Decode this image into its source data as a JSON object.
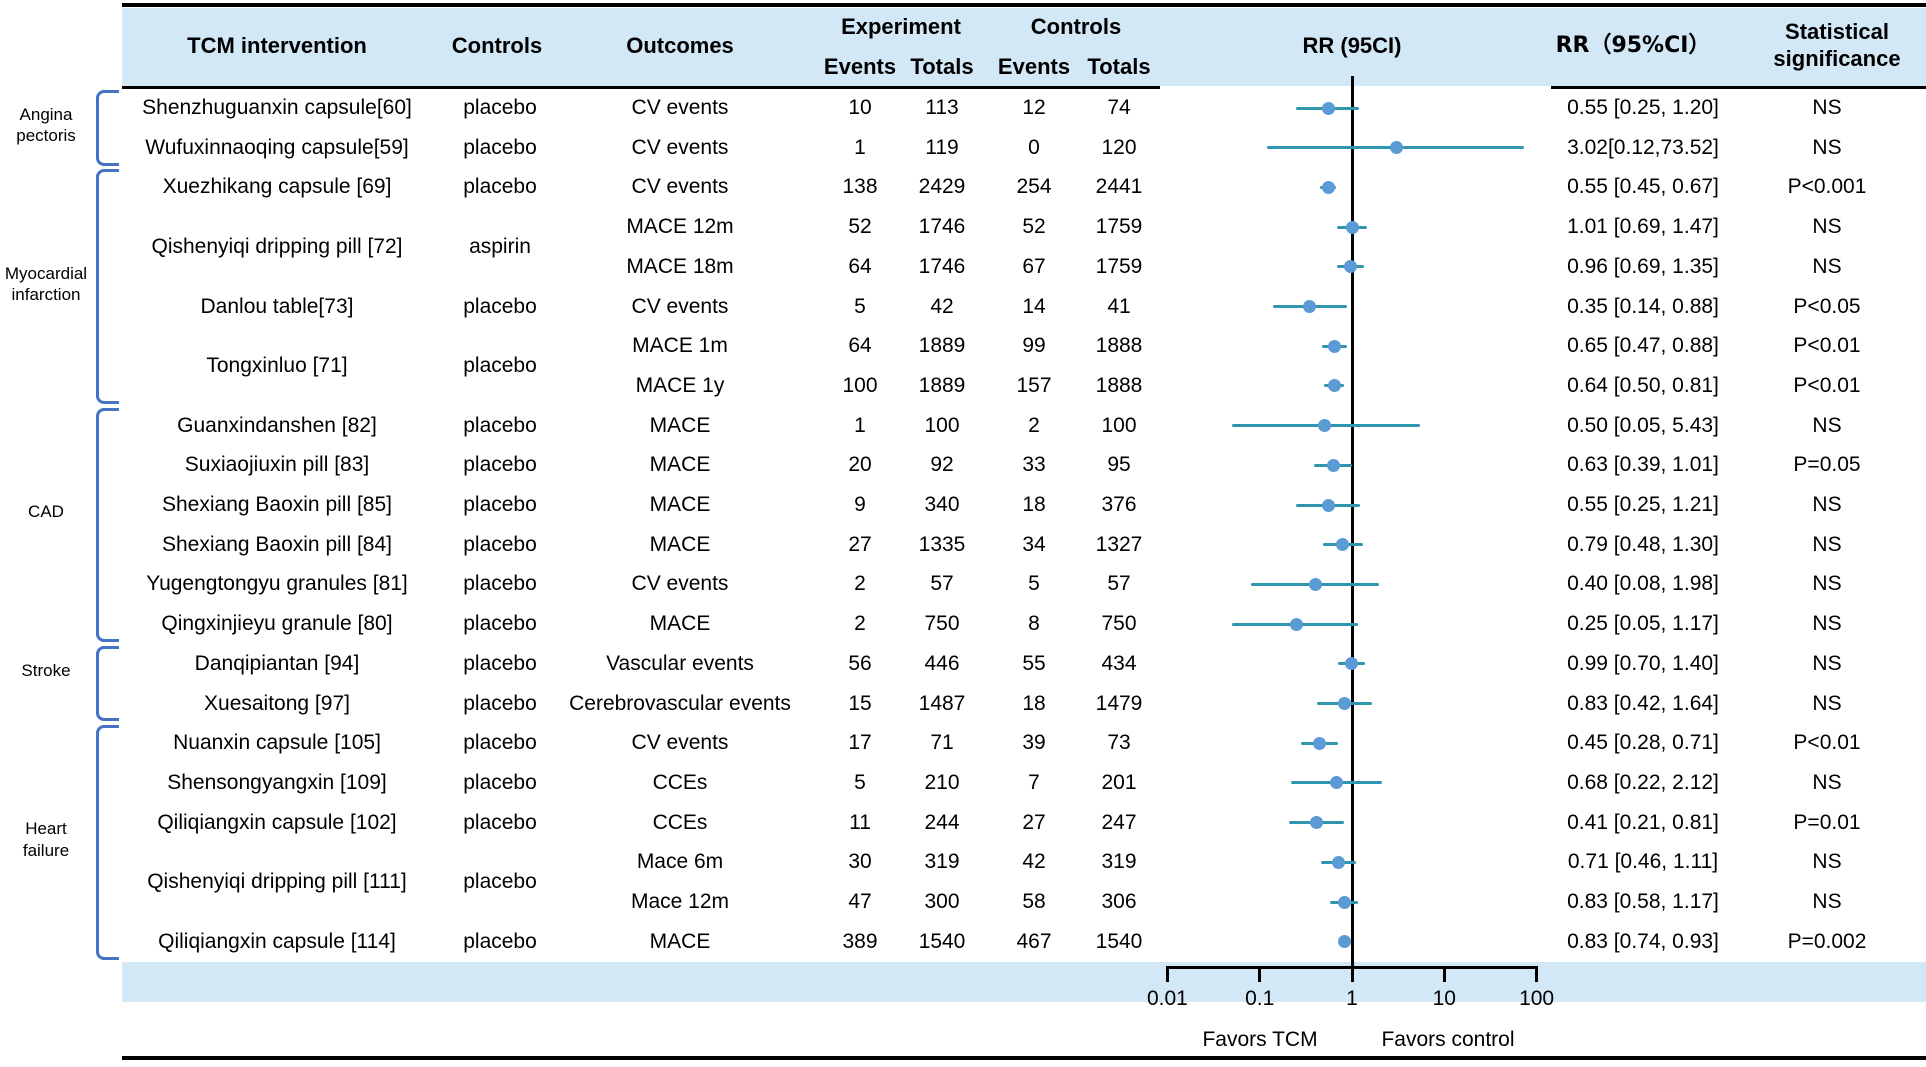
{
  "header": {
    "col_intervention": "TCM intervention",
    "col_controls": "Controls",
    "col_outcomes": "Outcomes",
    "group_experiment": "Experiment",
    "group_controls": "Controls",
    "sub_events": "Events",
    "sub_totals": "Totals",
    "col_rr_plot": "RR (95CI)",
    "col_rr_text": "RR（95%CI）",
    "col_significance": "Statistical significance"
  },
  "chart_data": {
    "type": "forest",
    "x_scale": "log10",
    "x_ticks": [
      0.01,
      0.1,
      1,
      10,
      100
    ],
    "x_tick_labels": [
      "0.01",
      "0.1",
      "1",
      "10",
      "100"
    ],
    "reference_line": 1,
    "favors_left": "Favors TCM",
    "favors_right": "Favors control",
    "colors": {
      "band": "#D3E8F7",
      "bracket": "#4472C4",
      "marker": "#5B9BD5",
      "ci_line": "#2E96AE"
    },
    "groups": [
      {
        "label": "Angina pectoris",
        "row_start": 1,
        "row_end": 2
      },
      {
        "label": "Myocardial infarction",
        "row_start": 3,
        "row_end": 8
      },
      {
        "label": "CAD",
        "row_start": 9,
        "row_end": 14
      },
      {
        "label": "Stroke",
        "row_start": 15,
        "row_end": 16
      },
      {
        "label": "Heart failure",
        "row_start": 17,
        "row_end": 22
      }
    ],
    "interventions": [
      {
        "label": "Shenzhuguanxin capsule[60]",
        "control": "placebo",
        "row_start": 1,
        "row_end": 1
      },
      {
        "label": "Wufuxinnaoqing capsule[59]",
        "control": "placebo",
        "row_start": 2,
        "row_end": 2
      },
      {
        "label": "Xuezhikang capsule [69]",
        "control": "placebo",
        "row_start": 3,
        "row_end": 3
      },
      {
        "label": "Qishenyiqi dripping pill [72]",
        "control": "aspirin",
        "row_start": 4,
        "row_end": 5
      },
      {
        "label": "Danlou table[73]",
        "control": "placebo",
        "row_start": 6,
        "row_end": 6
      },
      {
        "label": "Tongxinluo [71]",
        "control": "placebo",
        "row_start": 7,
        "row_end": 8
      },
      {
        "label": "Guanxindanshen [82]",
        "control": "placebo",
        "row_start": 9,
        "row_end": 9
      },
      {
        "label": "Suxiaojiuxin pill [83]",
        "control": "placebo",
        "row_start": 10,
        "row_end": 10
      },
      {
        "label": "Shexiang Baoxin pill [85]",
        "control": "placebo",
        "row_start": 11,
        "row_end": 11
      },
      {
        "label": "Shexiang Baoxin pill [84]",
        "control": "placebo",
        "row_start": 12,
        "row_end": 12
      },
      {
        "label": "Yugengtongyu granules [81]",
        "control": "placebo",
        "row_start": 13,
        "row_end": 13
      },
      {
        "label": "Qingxinjieyu granule [80]",
        "control": "placebo",
        "row_start": 14,
        "row_end": 14
      },
      {
        "label": "Danqipiantan [94]",
        "control": "placebo",
        "row_start": 15,
        "row_end": 15
      },
      {
        "label": "Xuesaitong [97]",
        "control": "placebo",
        "row_start": 16,
        "row_end": 16
      },
      {
        "label": "Nuanxin capsule [105]",
        "control": "placebo",
        "row_start": 17,
        "row_end": 17
      },
      {
        "label": "Shensongyangxin [109]",
        "control": "placebo",
        "row_start": 18,
        "row_end": 18
      },
      {
        "label": "Qiliqiangxin capsule [102]",
        "control": "placebo",
        "row_start": 19,
        "row_end": 19
      },
      {
        "label": "Qishenyiqi dripping pill [111]",
        "control": "placebo",
        "row_start": 20,
        "row_end": 21
      },
      {
        "label": "Qiliqiangxin capsule [114]",
        "control": "placebo",
        "row_start": 22,
        "row_end": 22
      }
    ],
    "studies": [
      {
        "outcome": "CV events",
        "exp_events": "10",
        "exp_totals": "113",
        "ctl_events": "12",
        "ctl_totals": "74",
        "rr": 0.55,
        "ci_low": 0.25,
        "ci_high": 1.2,
        "rr_label": "0.55 [0.25, 1.20]",
        "significance": "NS"
      },
      {
        "outcome": "CV events",
        "exp_events": "1",
        "exp_totals": "119",
        "ctl_events": "0",
        "ctl_totals": "120",
        "rr": 3.02,
        "ci_low": 0.12,
        "ci_high": 73.52,
        "rr_label": "3.02[0.12,73.52]",
        "significance": "NS"
      },
      {
        "outcome": "CV events",
        "exp_events": "138",
        "exp_totals": "2429",
        "ctl_events": "254",
        "ctl_totals": "2441",
        "rr": 0.55,
        "ci_low": 0.45,
        "ci_high": 0.67,
        "rr_label": "0.55 [0.45, 0.67]",
        "significance": "P<0.001"
      },
      {
        "outcome": "MACE 12m",
        "exp_events": "52",
        "exp_totals": "1746",
        "ctl_events": "52",
        "ctl_totals": "1759",
        "rr": 1.01,
        "ci_low": 0.69,
        "ci_high": 1.47,
        "rr_label": "1.01 [0.69, 1.47]",
        "significance": "NS"
      },
      {
        "outcome": "MACE 18m",
        "exp_events": "64",
        "exp_totals": "1746",
        "ctl_events": "67",
        "ctl_totals": "1759",
        "rr": 0.96,
        "ci_low": 0.69,
        "ci_high": 1.35,
        "rr_label": "0.96 [0.69, 1.35]",
        "significance": "NS"
      },
      {
        "outcome": "CV events",
        "exp_events": "5",
        "exp_totals": "42",
        "ctl_events": "14",
        "ctl_totals": "41",
        "rr": 0.35,
        "ci_low": 0.14,
        "ci_high": 0.88,
        "rr_label": "0.35 [0.14, 0.88]",
        "significance": "P<0.05"
      },
      {
        "outcome": "MACE 1m",
        "exp_events": "64",
        "exp_totals": "1889",
        "ctl_events": "99",
        "ctl_totals": "1888",
        "rr": 0.65,
        "ci_low": 0.47,
        "ci_high": 0.88,
        "rr_label": "0.65 [0.47, 0.88]",
        "significance": "P<0.01"
      },
      {
        "outcome": "MACE 1y",
        "exp_events": "100",
        "exp_totals": "1889",
        "ctl_events": "157",
        "ctl_totals": "1888",
        "rr": 0.64,
        "ci_low": 0.5,
        "ci_high": 0.81,
        "rr_label": "0.64 [0.50, 0.81]",
        "significance": "P<0.01"
      },
      {
        "outcome": "MACE",
        "exp_events": "1",
        "exp_totals": "100",
        "ctl_events": "2",
        "ctl_totals": "100",
        "rr": 0.5,
        "ci_low": 0.05,
        "ci_high": 5.43,
        "rr_label": "0.50 [0.05, 5.43]",
        "significance": "NS"
      },
      {
        "outcome": "MACE",
        "exp_events": "20",
        "exp_totals": "92",
        "ctl_events": "33",
        "ctl_totals": "95",
        "rr": 0.63,
        "ci_low": 0.39,
        "ci_high": 1.01,
        "rr_label": "0.63 [0.39, 1.01]",
        "significance": "P=0.05"
      },
      {
        "outcome": "MACE",
        "exp_events": "9",
        "exp_totals": "340",
        "ctl_events": "18",
        "ctl_totals": "376",
        "rr": 0.55,
        "ci_low": 0.25,
        "ci_high": 1.21,
        "rr_label": "0.55 [0.25, 1.21]",
        "significance": "NS"
      },
      {
        "outcome": "MACE",
        "exp_events": "27",
        "exp_totals": "1335",
        "ctl_events": "34",
        "ctl_totals": "1327",
        "rr": 0.79,
        "ci_low": 0.48,
        "ci_high": 1.3,
        "rr_label": "0.79 [0.48, 1.30]",
        "significance": "NS"
      },
      {
        "outcome": "CV events",
        "exp_events": "2",
        "exp_totals": "57",
        "ctl_events": "5",
        "ctl_totals": "57",
        "rr": 0.4,
        "ci_low": 0.08,
        "ci_high": 1.98,
        "rr_label": "0.40 [0.08, 1.98]",
        "significance": "NS"
      },
      {
        "outcome": "MACE",
        "exp_events": "2",
        "exp_totals": "750",
        "ctl_events": "8",
        "ctl_totals": "750",
        "rr": 0.25,
        "ci_low": 0.05,
        "ci_high": 1.17,
        "rr_label": "0.25 [0.05, 1.17]",
        "significance": "NS"
      },
      {
        "outcome": "Vascular events",
        "exp_events": "56",
        "exp_totals": "446",
        "ctl_events": "55",
        "ctl_totals": "434",
        "rr": 0.99,
        "ci_low": 0.7,
        "ci_high": 1.4,
        "rr_label": "0.99 [0.70, 1.40]",
        "significance": "NS"
      },
      {
        "outcome": "Cerebrovascular events",
        "exp_events": "15",
        "exp_totals": "1487",
        "ctl_events": "18",
        "ctl_totals": "1479",
        "rr": 0.83,
        "ci_low": 0.42,
        "ci_high": 1.64,
        "rr_label": "0.83 [0.42, 1.64]",
        "significance": "NS"
      },
      {
        "outcome": "CV events",
        "exp_events": "17",
        "exp_totals": "71",
        "ctl_events": "39",
        "ctl_totals": "73",
        "rr": 0.45,
        "ci_low": 0.28,
        "ci_high": 0.71,
        "rr_label": "0.45 [0.28, 0.71]",
        "significance": "P<0.01"
      },
      {
        "outcome": "CCEs",
        "exp_events": "5",
        "exp_totals": "210",
        "ctl_events": "7",
        "ctl_totals": "201",
        "rr": 0.68,
        "ci_low": 0.22,
        "ci_high": 2.12,
        "rr_label": "0.68 [0.22, 2.12]",
        "significance": "NS"
      },
      {
        "outcome": "CCEs",
        "exp_events": "11",
        "exp_totals": "244",
        "ctl_events": "27",
        "ctl_totals": "247",
        "rr": 0.41,
        "ci_low": 0.21,
        "ci_high": 0.81,
        "rr_label": "0.41 [0.21, 0.81]",
        "significance": "P=0.01"
      },
      {
        "outcome": "Mace 6m",
        "exp_events": "30",
        "exp_totals": "319",
        "ctl_events": "42",
        "ctl_totals": "319",
        "rr": 0.71,
        "ci_low": 0.46,
        "ci_high": 1.11,
        "rr_label": "0.71 [0.46, 1.11]",
        "significance": "NS"
      },
      {
        "outcome": "Mace 12m",
        "exp_events": "47",
        "exp_totals": "300",
        "ctl_events": "58",
        "ctl_totals": "306",
        "rr": 0.83,
        "ci_low": 0.58,
        "ci_high": 1.17,
        "rr_label": "0.83 [0.58, 1.17]",
        "significance": "NS"
      },
      {
        "outcome": "MACE",
        "exp_events": "389",
        "exp_totals": "1540",
        "ctl_events": "467",
        "ctl_totals": "1540",
        "rr": 0.83,
        "ci_low": 0.74,
        "ci_high": 0.93,
        "rr_label": "0.83 [0.74, 0.93]",
        "significance": "P=0.002"
      }
    ]
  }
}
